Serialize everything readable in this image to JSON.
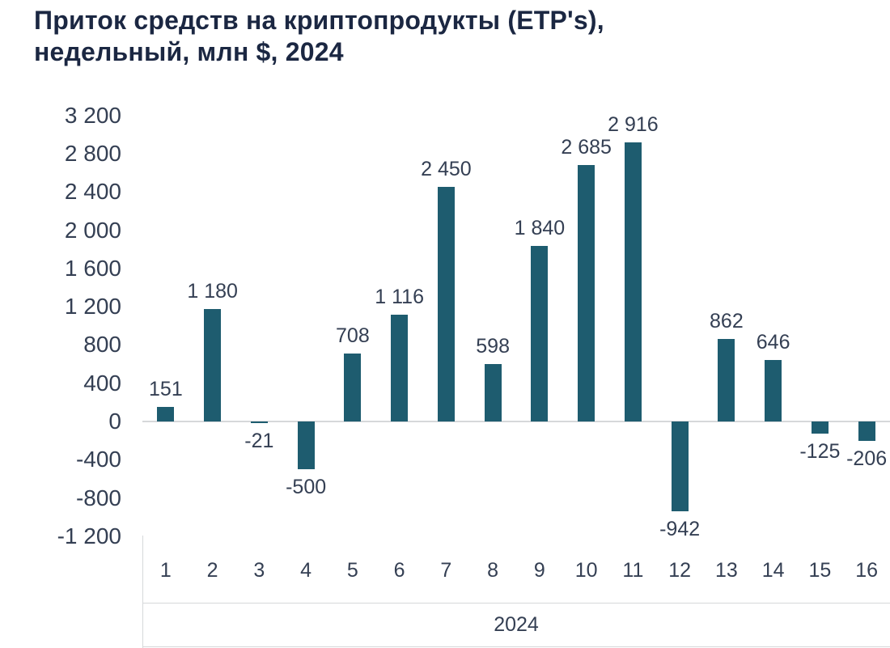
{
  "chart_data": {
    "type": "bar",
    "title": "Приток средств на криптопродукты (ETP's), недельный, млн $, 2024",
    "title_lines": [
      "Приток средств на криптопродукты (ETP's),",
      "недельный, млн $, 2024"
    ],
    "categories": [
      "1",
      "2",
      "3",
      "4",
      "5",
      "6",
      "7",
      "8",
      "9",
      "10",
      "11",
      "12",
      "13",
      "14",
      "15",
      "16"
    ],
    "values": [
      151,
      1180,
      -21,
      -500,
      708,
      1116,
      2450,
      598,
      1840,
      2685,
      2916,
      -942,
      862,
      646,
      -125,
      -206
    ],
    "value_labels": [
      "151",
      "1 180",
      "-21",
      "-500",
      "708",
      "1 116",
      "2 450",
      "598",
      "1 840",
      "2 685",
      "2 916",
      "-942",
      "862",
      "646",
      "-125",
      "-206"
    ],
    "y_ticks": [
      "3 200",
      "2 800",
      "2 400",
      "2 000",
      "1 600",
      "1 200",
      "800",
      "400",
      "0",
      "-400",
      "-800",
      "-1 200"
    ],
    "ylim": [
      -1200,
      3200
    ],
    "y_step": 400,
    "xlabel_group": "2024",
    "xlabel": "",
    "ylabel": "",
    "grid": "off",
    "legend": "none",
    "bar_color": "#1e5c6f",
    "title_color": "#1b2742",
    "label_color": "#343f53",
    "axis_line_color": "#d6d8da"
  }
}
